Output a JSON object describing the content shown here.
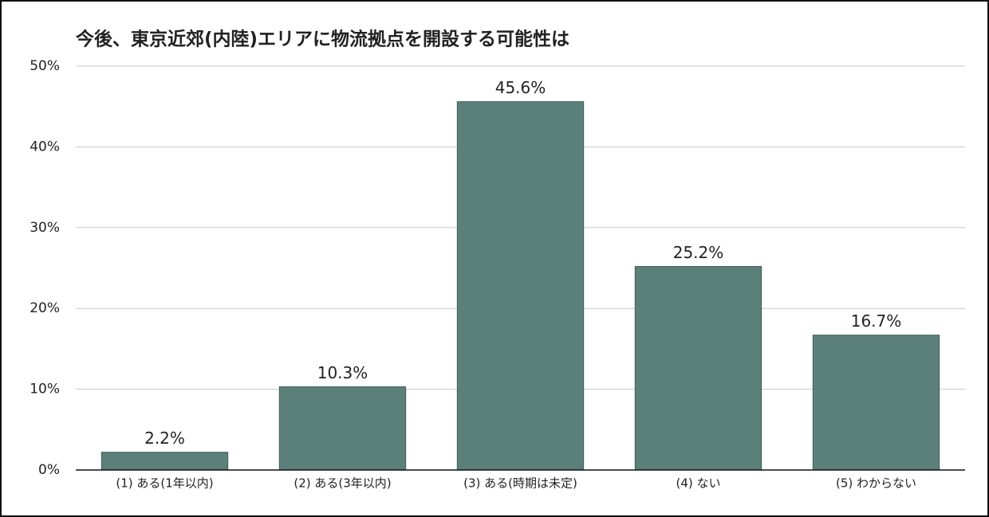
{
  "chart_data": {
    "type": "bar",
    "title": "今後、東京近郊(内陸)エリアに物流拠点を開設する可能性は",
    "categories": [
      "(1) ある(1年以内)",
      "(2) ある(3年以内)",
      "(3) ある(時期は未定)",
      "(4) ない",
      "(5) わからない"
    ],
    "values": [
      2.2,
      10.3,
      45.6,
      25.2,
      16.7
    ],
    "value_labels": [
      "2.2%",
      "10.3%",
      "45.6%",
      "25.2%",
      "16.7%"
    ],
    "color": "#5a8079",
    "ylim": [
      0,
      50
    ],
    "yticks": [
      {
        "value": 0,
        "label": "0%"
      },
      {
        "value": 10,
        "label": "10%"
      },
      {
        "value": 20,
        "label": "20%"
      },
      {
        "value": 30,
        "label": "30%"
      },
      {
        "value": 40,
        "label": "40%"
      },
      {
        "value": 50,
        "label": "50%"
      }
    ],
    "grid": true
  }
}
